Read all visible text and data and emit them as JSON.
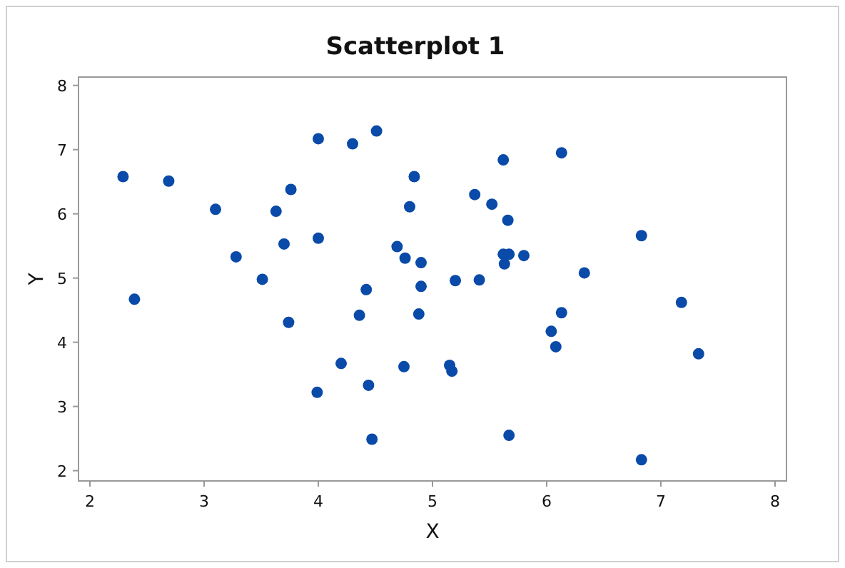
{
  "chart_data": {
    "type": "scatter",
    "title": "Scatterplot 1",
    "xlabel": "X",
    "ylabel": "Y",
    "xlim": [
      1.9,
      8.1
    ],
    "ylim": [
      1.84,
      8.13
    ],
    "xticks": [
      2,
      3,
      4,
      5,
      6,
      7,
      8
    ],
    "yticks": [
      2,
      3,
      4,
      5,
      6,
      7,
      8
    ],
    "grid": false,
    "marker": "circle",
    "series": [
      {
        "color": "#0a4aa8",
        "x": [
          2.29,
          2.39,
          2.69,
          3.1,
          3.28,
          3.51,
          3.63,
          3.7,
          3.76,
          3.74,
          4.0,
          4.0,
          3.99,
          4.3,
          4.51,
          4.2,
          4.36,
          4.42,
          4.44,
          4.47,
          4.84,
          4.8,
          4.69,
          4.76,
          4.9,
          4.9,
          4.88,
          4.75,
          5.62,
          6.13,
          5.37,
          5.52,
          5.66,
          6.83,
          5.62,
          5.67,
          5.8,
          5.63,
          5.2,
          5.41,
          6.33,
          7.18,
          6.13,
          6.04,
          6.08,
          7.33,
          5.15,
          5.17,
          5.67,
          6.83
        ],
        "values": [
          6.58,
          4.67,
          6.51,
          6.07,
          5.33,
          4.98,
          6.04,
          5.53,
          6.38,
          4.31,
          7.17,
          5.62,
          3.22,
          7.09,
          7.29,
          3.67,
          4.42,
          4.82,
          3.33,
          2.49,
          6.58,
          6.11,
          5.49,
          5.31,
          5.24,
          4.87,
          4.44,
          3.62,
          6.84,
          6.95,
          6.3,
          6.15,
          5.9,
          5.66,
          5.37,
          5.37,
          5.35,
          5.22,
          4.96,
          4.97,
          5.08,
          4.62,
          4.46,
          4.17,
          3.93,
          3.82,
          3.64,
          3.55,
          2.55,
          2.17
        ]
      }
    ]
  }
}
